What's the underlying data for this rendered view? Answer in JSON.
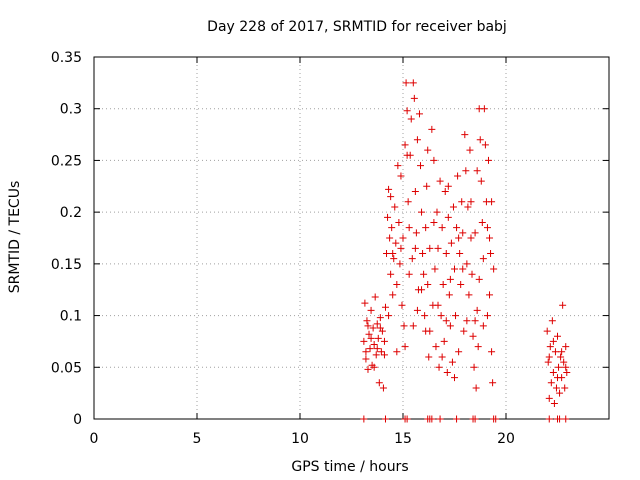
{
  "chart_data": {
    "type": "scatter",
    "title": "Day 228 of 2017, SRMTID for receiver babj",
    "xlabel": "GPS time / hours",
    "ylabel": "SRMTID / TECUs",
    "xlim": [
      0,
      25
    ],
    "ylim": [
      0,
      0.35
    ],
    "xticks": [
      0,
      5,
      10,
      15,
      20
    ],
    "yticks": [
      0,
      0.05,
      0.1,
      0.15,
      0.2,
      0.25,
      0.3,
      0.35
    ],
    "xtick_labels": [
      "0",
      "5",
      "10",
      "15",
      "20"
    ],
    "ytick_labels": [
      "0",
      "0.05",
      "0.1",
      "0.15",
      "0.2",
      "0.25",
      "0.3",
      "0.35"
    ],
    "grid": true,
    "marker": "+",
    "color": "#dd0000",
    "series": [
      {
        "points": [
          [
            13.1,
            0.075
          ],
          [
            13.15,
            0.112
          ],
          [
            13.2,
            0.058
          ],
          [
            13.25,
            0.095
          ],
          [
            13.3,
            0.048
          ],
          [
            13.35,
            0.082
          ],
          [
            13.4,
            0.068
          ],
          [
            13.45,
            0.105
          ],
          [
            13.5,
            0.052
          ],
          [
            13.55,
            0.088
          ],
          [
            13.6,
            0.072
          ],
          [
            13.65,
            0.118
          ],
          [
            13.7,
            0.062
          ],
          [
            13.75,
            0.092
          ],
          [
            13.8,
            0.078
          ],
          [
            13.85,
            0.035
          ],
          [
            13.9,
            0.098
          ],
          [
            13.95,
            0.065
          ],
          [
            14.0,
            0.085
          ],
          [
            14.05,
            0.03
          ],
          [
            14.1,
            0.062
          ],
          [
            14.15,
            0.108
          ],
          [
            14.2,
            0.16
          ],
          [
            14.25,
            0.195
          ],
          [
            14.3,
            0.222
          ],
          [
            14.35,
            0.175
          ],
          [
            14.4,
            0.14
          ],
          [
            14.45,
            0.185
          ],
          [
            14.5,
            0.12
          ],
          [
            14.55,
            0.155
          ],
          [
            14.6,
            0.205
          ],
          [
            14.65,
            0.17
          ],
          [
            14.7,
            0.13
          ],
          [
            14.75,
            0.245
          ],
          [
            14.8,
            0.19
          ],
          [
            14.85,
            0.15
          ],
          [
            14.9,
            0.235
          ],
          [
            14.95,
            0.11
          ],
          [
            15.0,
            0.175
          ],
          [
            15.05,
            0.09
          ],
          [
            15.1,
            0.265
          ],
          [
            15.15,
            0.325
          ],
          [
            15.2,
            0.298
          ],
          [
            15.25,
            0.21
          ],
          [
            15.3,
            0.185
          ],
          [
            15.35,
            0.255
          ],
          [
            15.4,
            0.29
          ],
          [
            15.45,
            0.155
          ],
          [
            15.5,
            0.325
          ],
          [
            15.55,
            0.31
          ],
          [
            15.6,
            0.22
          ],
          [
            15.65,
            0.18
          ],
          [
            15.7,
            0.27
          ],
          [
            15.75,
            0.125
          ],
          [
            15.8,
            0.295
          ],
          [
            15.85,
            0.245
          ],
          [
            15.9,
            0.2
          ],
          [
            15.95,
            0.16
          ],
          [
            16.0,
            0.14
          ],
          [
            16.05,
            0.1
          ],
          [
            16.1,
            0.185
          ],
          [
            16.15,
            0.225
          ],
          [
            16.2,
            0.13
          ],
          [
            16.25,
            0.06
          ],
          [
            16.3,
            0.085
          ],
          [
            16.4,
            0.28
          ],
          [
            16.45,
            0.11
          ],
          [
            16.5,
            0.25
          ],
          [
            16.55,
            0.145
          ],
          [
            16.6,
            0.07
          ],
          [
            16.65,
            0.2
          ],
          [
            16.7,
            0.165
          ],
          [
            16.75,
            0.05
          ],
          [
            16.8,
            0.23
          ],
          [
            16.85,
            0.1
          ],
          [
            16.9,
            0.185
          ],
          [
            16.95,
            0.13
          ],
          [
            17.0,
            0.075
          ],
          [
            17.05,
            0.22
          ],
          [
            17.1,
            0.16
          ],
          [
            17.15,
            0.045
          ],
          [
            17.2,
            0.195
          ],
          [
            17.25,
            0.12
          ],
          [
            17.3,
            0.09
          ],
          [
            17.35,
            0.17
          ],
          [
            17.4,
            0.055
          ],
          [
            17.45,
            0.205
          ],
          [
            17.5,
            0.145
          ],
          [
            17.55,
            0.1
          ],
          [
            17.6,
            0.185
          ],
          [
            17.65,
            0.235
          ],
          [
            17.7,
            0.065
          ],
          [
            17.75,
            0.16
          ],
          [
            17.8,
            0.13
          ],
          [
            17.85,
            0.21
          ],
          [
            17.9,
            0.18
          ],
          [
            17.95,
            0.085
          ],
          [
            18.0,
            0.275
          ],
          [
            18.05,
            0.24
          ],
          [
            18.1,
            0.15
          ],
          [
            18.15,
            0.205
          ],
          [
            18.2,
            0.12
          ],
          [
            18.25,
            0.26
          ],
          [
            18.3,
            0.175
          ],
          [
            18.35,
            0.14
          ],
          [
            18.4,
            0.08
          ],
          [
            18.45,
            0.05
          ],
          [
            18.5,
            0.095
          ],
          [
            18.55,
            0.03
          ],
          [
            18.6,
            0.105
          ],
          [
            18.65,
            0.07
          ],
          [
            18.7,
            0.3
          ],
          [
            18.75,
            0.27
          ],
          [
            18.8,
            0.23
          ],
          [
            18.85,
            0.19
          ],
          [
            18.9,
            0.155
          ],
          [
            18.95,
            0.3
          ],
          [
            19.0,
            0.265
          ],
          [
            19.05,
            0.21
          ],
          [
            19.1,
            0.185
          ],
          [
            19.15,
            0.25
          ],
          [
            19.2,
            0.12
          ],
          [
            19.25,
            0.16
          ],
          [
            19.3,
            0.065
          ],
          [
            19.35,
            0.035
          ],
          [
            19.4,
            0.145
          ],
          [
            13.2,
            0.065
          ],
          [
            13.3,
            0.09
          ],
          [
            13.45,
            0.078
          ],
          [
            13.6,
            0.05
          ],
          [
            13.75,
            0.068
          ],
          [
            13.9,
            0.088
          ],
          [
            14.1,
            0.075
          ],
          [
            14.3,
            0.1
          ],
          [
            14.5,
            0.16
          ],
          [
            14.7,
            0.065
          ],
          [
            14.9,
            0.165
          ],
          [
            15.1,
            0.07
          ],
          [
            15.3,
            0.14
          ],
          [
            15.5,
            0.09
          ],
          [
            15.7,
            0.105
          ],
          [
            15.9,
            0.125
          ],
          [
            16.1,
            0.085
          ],
          [
            16.3,
            0.165
          ],
          [
            16.5,
            0.19
          ],
          [
            16.7,
            0.11
          ],
          [
            16.9,
            0.06
          ],
          [
            17.1,
            0.095
          ],
          [
            17.3,
            0.135
          ],
          [
            17.5,
            0.04
          ],
          [
            17.7,
            0.175
          ],
          [
            17.9,
            0.145
          ],
          [
            18.1,
            0.095
          ],
          [
            18.3,
            0.21
          ],
          [
            18.5,
            0.18
          ],
          [
            18.7,
            0.135
          ],
          [
            18.9,
            0.09
          ],
          [
            19.1,
            0.1
          ],
          [
            19.3,
            0.21
          ],
          [
            14.4,
            0.215
          ],
          [
            15.2,
            0.255
          ],
          [
            16.2,
            0.26
          ],
          [
            17.2,
            0.225
          ],
          [
            18.6,
            0.24
          ],
          [
            19.2,
            0.175
          ],
          [
            15.6,
            0.165
          ],
          [
            22.0,
            0.085
          ],
          [
            22.05,
            0.055
          ],
          [
            22.1,
            0.02
          ],
          [
            22.15,
            0.07
          ],
          [
            22.2,
            0.035
          ],
          [
            22.25,
            0.095
          ],
          [
            22.3,
            0.045
          ],
          [
            22.35,
            0.015
          ],
          [
            22.4,
            0.065
          ],
          [
            22.45,
            0.03
          ],
          [
            22.5,
            0.08
          ],
          [
            22.55,
            0.05
          ],
          [
            22.6,
            0.025
          ],
          [
            22.65,
            0.06
          ],
          [
            22.7,
            0.04
          ],
          [
            22.75,
            0.11
          ],
          [
            22.8,
            0.055
          ],
          [
            22.85,
            0.03
          ],
          [
            22.9,
            0.07
          ],
          [
            22.95,
            0.045
          ],
          [
            22.1,
            0.06
          ],
          [
            22.3,
            0.075
          ],
          [
            22.5,
            0.04
          ],
          [
            22.7,
            0.065
          ],
          [
            22.9,
            0.05
          ],
          [
            13.1,
            0
          ],
          [
            14.15,
            0
          ],
          [
            15.1,
            0
          ],
          [
            15.2,
            0
          ],
          [
            16.2,
            0
          ],
          [
            16.3,
            0
          ],
          [
            16.4,
            0
          ],
          [
            16.8,
            0
          ],
          [
            17.6,
            0
          ],
          [
            18.4,
            0
          ],
          [
            18.5,
            0
          ],
          [
            19.4,
            0
          ],
          [
            19.5,
            0
          ],
          [
            22.1,
            0
          ],
          [
            22.5,
            0
          ],
          [
            22.6,
            0
          ],
          [
            22.9,
            0
          ]
        ]
      }
    ]
  }
}
